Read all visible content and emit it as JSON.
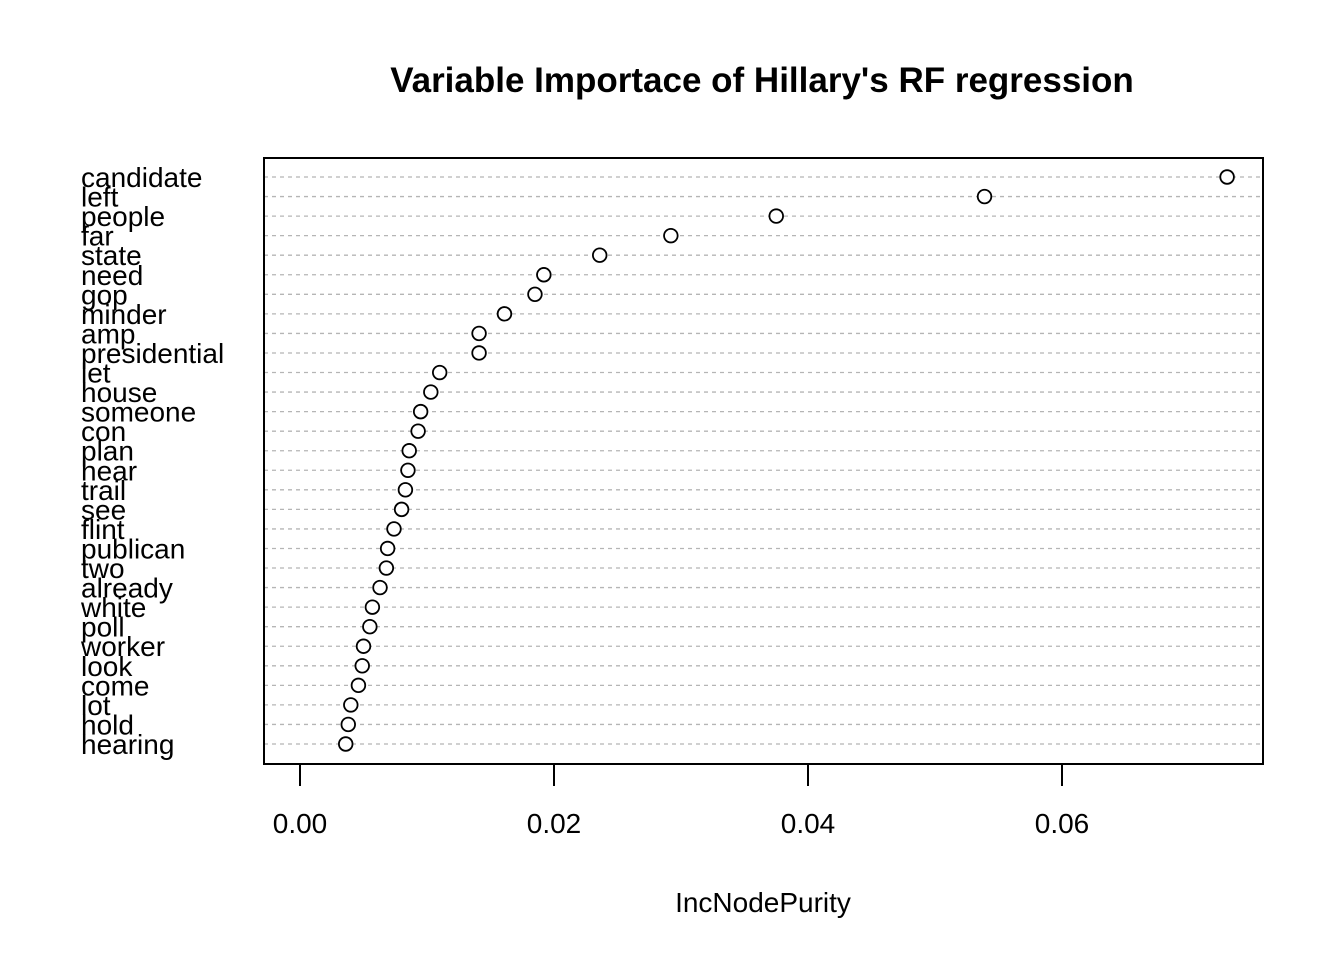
{
  "chart_data": {
    "type": "scatter",
    "title": "Variable Importace of Hillary's RF regression",
    "xlabel": "IncNodePurity",
    "ylabel": "",
    "xlim": [
      0.0,
      0.0758
    ],
    "xticks": [
      "0.00",
      "0.02",
      "0.04",
      "0.06"
    ],
    "grid": true,
    "categories": [
      "candidate",
      "left",
      "people",
      "far",
      "state",
      "need",
      "gop",
      "minder",
      "amp",
      "presidential",
      "let",
      "house",
      "someone",
      "con",
      "plan",
      "hear",
      "trail",
      "see",
      "flint",
      "publican",
      "two",
      "already",
      "white",
      "poll",
      "worker",
      "look",
      "come",
      "lot",
      "hold",
      "hearing"
    ],
    "values": [
      0.073,
      0.0539,
      0.0375,
      0.0292,
      0.0236,
      0.0192,
      0.0185,
      0.0161,
      0.0141,
      0.0141,
      0.011,
      0.0103,
      0.0095,
      0.0093,
      0.0086,
      0.0085,
      0.0083,
      0.008,
      0.0074,
      0.0069,
      0.0068,
      0.0063,
      0.0057,
      0.0055,
      0.005,
      0.0049,
      0.0046,
      0.004,
      0.0038,
      0.0036
    ]
  }
}
